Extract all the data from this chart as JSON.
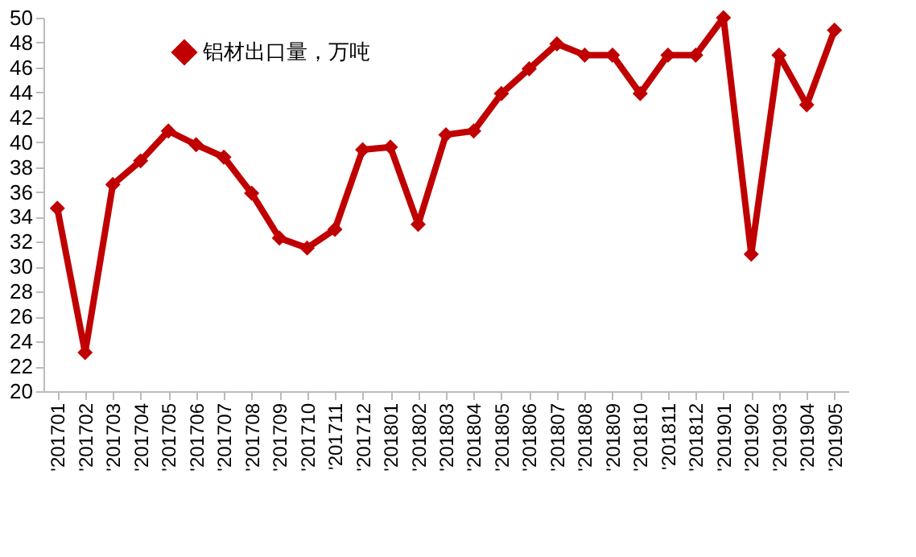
{
  "chart_data": {
    "type": "line",
    "categories": [
      "'201701",
      "'201702",
      "'201703",
      "'201704",
      "'201705",
      "'201706",
      "'201707",
      "'201708",
      "'201709",
      "'201710",
      "'201711",
      "'201712",
      "'201801",
      "'201802",
      "'201803",
      "'201804",
      "'201805",
      "'201806",
      "'201807",
      "'201808",
      "'201809",
      "'201810",
      "'201811",
      "'201812",
      "'201901",
      "'201902",
      "'201903",
      "'201904",
      "'201905"
    ],
    "series": [
      {
        "name": "铝材出口量，万吨",
        "color": "#c00000",
        "values": [
          34.7,
          23.1,
          36.6,
          38.5,
          40.9,
          39.8,
          38.8,
          35.9,
          32.3,
          31.5,
          33.0,
          39.4,
          39.6,
          33.4,
          40.6,
          40.9,
          43.9,
          45.9,
          47.9,
          47.0,
          47.0,
          43.9,
          47.0,
          47.0,
          50.0,
          31.0,
          47.0,
          43.0,
          49.0
        ]
      }
    ],
    "ylim": [
      20,
      50
    ],
    "yticks": [
      20,
      22,
      24,
      26,
      28,
      30,
      32,
      34,
      36,
      38,
      40,
      42,
      44,
      46,
      48,
      50
    ],
    "grid": false,
    "legend": "top left",
    "marker": "diamond",
    "line_style": "solid"
  }
}
